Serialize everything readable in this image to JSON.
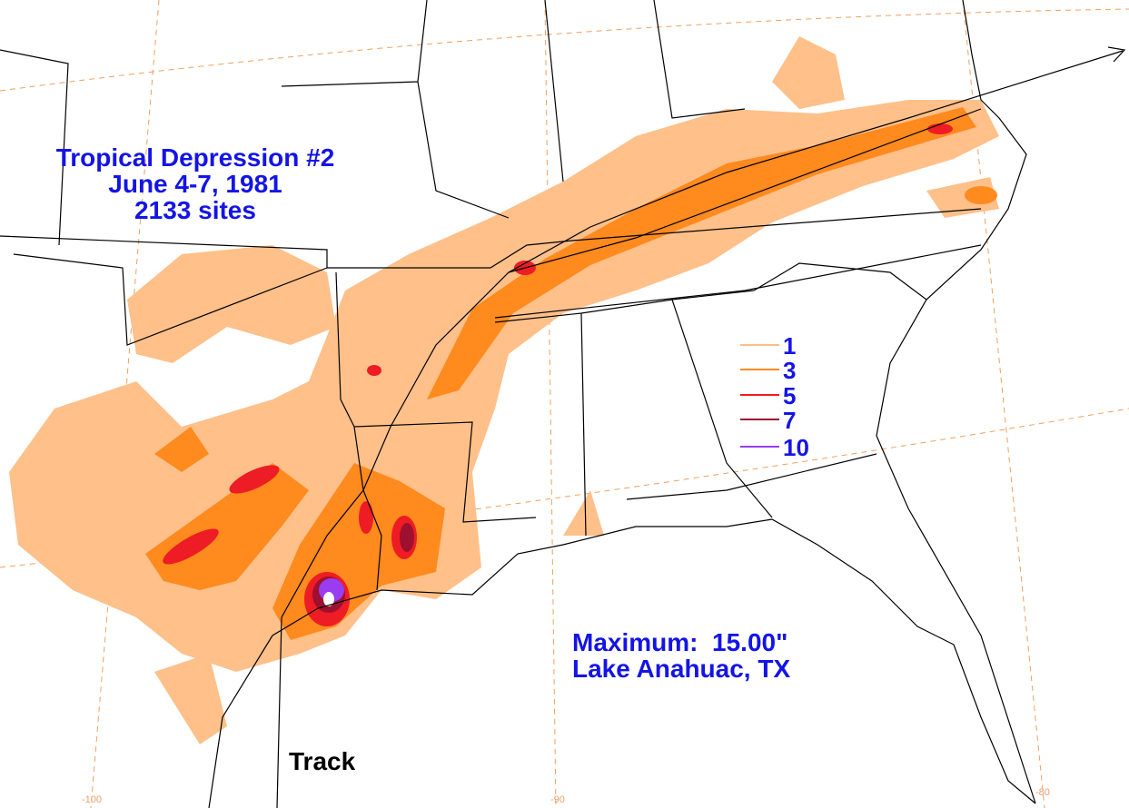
{
  "title_lines": [
    "Tropical Depression #2",
    "June 4-7, 1981",
    "2133 sites"
  ],
  "legend": [
    {
      "value": 1,
      "color": "#ffc08a"
    },
    {
      "value": 3,
      "color": "#ff8a1e"
    },
    {
      "value": 5,
      "color": "#ee1c24"
    },
    {
      "value": 7,
      "color": "#9e1030"
    },
    {
      "value": 10,
      "color": "#9a3cf0"
    }
  ],
  "maximum": {
    "label": "Maximum:  15.00\"",
    "location": "Lake Anahuac, TX"
  },
  "track_label": "Track",
  "longitude_labels": [
    "-100",
    "-90",
    "-80"
  ]
}
